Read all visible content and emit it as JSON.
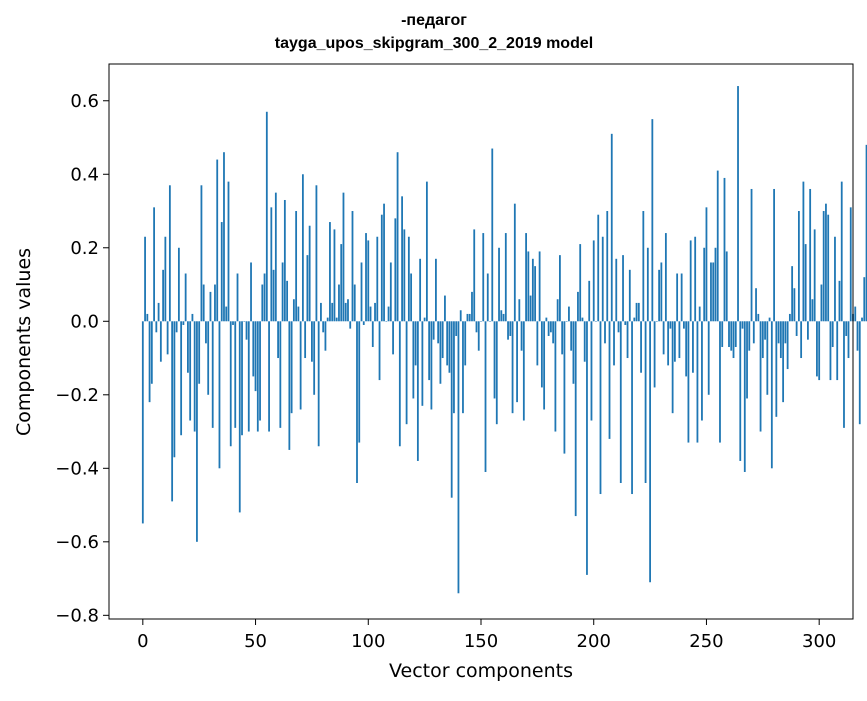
{
  "chart_data": {
    "type": "bar",
    "title_line1": "-педагог",
    "title_line2": "tayga_upos_skipgram_300_2_2019 model",
    "xlabel": "Vector components",
    "ylabel": "Components values",
    "xlim": [
      -15,
      315
    ],
    "ylim": [
      -0.81,
      0.7
    ],
    "x_ticks": [
      0,
      50,
      100,
      150,
      200,
      250,
      300
    ],
    "x_tick_labels": [
      "0",
      "50",
      "100",
      "150",
      "200",
      "250",
      "300"
    ],
    "y_ticks": [
      -0.8,
      -0.6,
      -0.4,
      -0.2,
      0.0,
      0.2,
      0.4,
      0.6
    ],
    "y_tick_labels": [
      "−0.8",
      "−0.6",
      "−0.4",
      "−0.2",
      "0.0",
      "0.2",
      "0.4",
      "0.6"
    ],
    "bar_color": "#1f77b4",
    "series": [
      {
        "name": "-педагог",
        "values": [
          -0.55,
          0.23,
          0.02,
          -0.22,
          -0.17,
          0.31,
          -0.03,
          0.05,
          -0.11,
          0.14,
          0.23,
          -0.09,
          0.37,
          -0.49,
          -0.37,
          -0.03,
          0.2,
          -0.31,
          -0.01,
          0.13,
          -0.14,
          -0.27,
          0.02,
          -0.3,
          -0.6,
          -0.17,
          0.37,
          0.1,
          -0.06,
          -0.2,
          0.08,
          -0.29,
          0.1,
          0.44,
          -0.4,
          0.27,
          0.46,
          0.04,
          0.38,
          -0.34,
          -0.01,
          -0.29,
          0.13,
          -0.52,
          -0.31,
          0.0,
          -0.05,
          -0.3,
          0.16,
          -0.15,
          -0.19,
          -0.3,
          -0.27,
          0.1,
          0.13,
          0.57,
          -0.3,
          0.31,
          0.14,
          0.35,
          -0.1,
          -0.29,
          0.16,
          0.33,
          0.11,
          -0.35,
          -0.25,
          0.06,
          0.3,
          0.04,
          -0.24,
          0.4,
          -0.1,
          0.18,
          0.26,
          -0.11,
          -0.2,
          0.37,
          -0.34,
          0.05,
          -0.03,
          -0.08,
          0.01,
          0.27,
          0.05,
          0.25,
          0.01,
          0.1,
          0.21,
          0.35,
          0.05,
          0.06,
          -0.02,
          0.3,
          0.1,
          -0.44,
          -0.33,
          0.16,
          -0.01,
          0.24,
          0.22,
          0.04,
          -0.07,
          0.05,
          0.23,
          -0.16,
          0.29,
          0.32,
          0.0,
          0.04,
          0.16,
          -0.09,
          0.28,
          0.46,
          -0.34,
          0.34,
          0.25,
          -0.28,
          0.23,
          0.13,
          -0.21,
          -0.12,
          -0.38,
          0.17,
          -0.23,
          0.01,
          0.38,
          -0.16,
          -0.24,
          -0.05,
          0.17,
          -0.06,
          -0.17,
          -0.1,
          0.07,
          -0.12,
          -0.14,
          -0.48,
          -0.25,
          -0.04,
          -0.74,
          0.03,
          -0.25,
          -0.12,
          0.02,
          0.02,
          0.08,
          0.25,
          -0.03,
          -0.08,
          0.0,
          0.24,
          -0.41,
          0.13,
          0.0,
          0.47,
          -0.21,
          -0.28,
          0.2,
          0.03,
          0.02,
          0.24,
          -0.05,
          -0.04,
          -0.25,
          0.32,
          -0.22,
          0.06,
          -0.08,
          -0.27,
          0.24,
          0.19,
          0.07,
          0.17,
          0.15,
          -0.12,
          0.19,
          -0.18,
          -0.24,
          0.01,
          -0.04,
          -0.03,
          -0.06,
          -0.3,
          0.06,
          0.18,
          -0.09,
          -0.36,
          0.0,
          0.04,
          -0.08,
          -0.17,
          -0.53,
          0.08,
          0.21,
          0.01,
          -0.11,
          -0.69,
          0.11,
          -0.27,
          0.22,
          0.0,
          0.29,
          -0.47,
          0.23,
          -0.06,
          0.3,
          -0.32,
          0.51,
          -0.12,
          0.17,
          -0.03,
          -0.44,
          0.18,
          -0.01,
          -0.1,
          0.14,
          -0.47,
          0.01,
          0.05,
          0.05,
          -0.14,
          0.3,
          -0.44,
          0.2,
          -0.71,
          0.55,
          -0.18,
          0.0,
          0.14,
          0.16,
          -0.09,
          0.24,
          -0.12,
          -0.02,
          -0.25,
          -0.11,
          0.13,
          -0.1,
          0.13,
          -0.02,
          -0.15,
          -0.33,
          0.22,
          -0.14,
          0.23,
          -0.33,
          0.04,
          -0.27,
          0.2,
          0.31,
          -0.2,
          0.16,
          0.16,
          0.2,
          0.41,
          -0.33,
          -0.07,
          0.39,
          0.19,
          -0.07,
          -0.08,
          -0.1,
          -0.07,
          0.64,
          -0.38,
          -0.02,
          -0.41,
          -0.21,
          -0.08,
          0.36,
          -0.06,
          0.09,
          0.02,
          -0.3,
          -0.1,
          -0.05,
          -0.2,
          0.01,
          -0.4,
          0.36,
          -0.26,
          -0.06,
          -0.1,
          -0.22,
          -0.06,
          -0.13,
          0.02,
          0.15,
          0.09,
          -0.04,
          0.3,
          -0.1,
          0.38,
          0.21,
          -0.05,
          0.36,
          0.06,
          0.25,
          -0.15,
          -0.16,
          0.1,
          0.3,
          0.32,
          0.29,
          -0.16,
          -0.07,
          0.23,
          -0.16,
          0.11,
          0.38,
          -0.29,
          -0.04,
          -0.1,
          0.31,
          0.02,
          0.04,
          -0.08,
          -0.28,
          0.01,
          0.12,
          0.48,
          -0.25
        ]
      }
    ]
  }
}
